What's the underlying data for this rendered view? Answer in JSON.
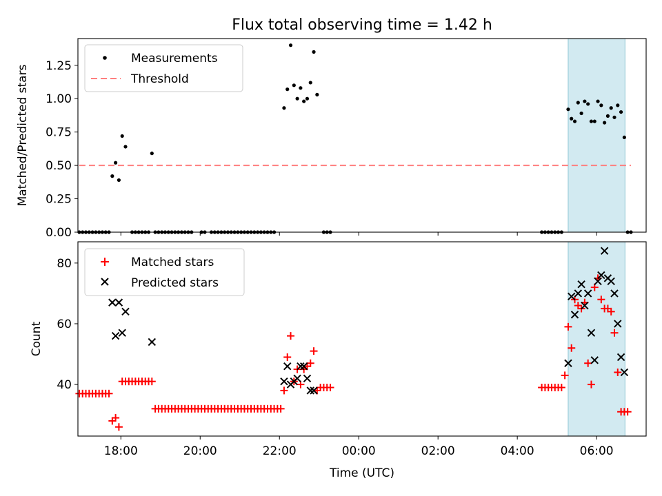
{
  "figure": {
    "title": "Flux total observing time = 1.42 h",
    "x_label": "Time (UTC)",
    "x_ticks": [
      "18:00",
      "20:00",
      "22:00",
      "00:00",
      "02:00",
      "04:00",
      "06:00"
    ],
    "highlight_color": "#add8e6"
  },
  "chart_data": [
    {
      "type": "scatter",
      "title": "Flux total observing time = 1.42 h",
      "xlabel": "",
      "ylabel": "Matched/Predicted stars",
      "ylim": [
        0,
        1.45
      ],
      "yticks": [
        0,
        0.25,
        0.5,
        0.75,
        1.0,
        1.25
      ],
      "ytick_labels": [
        "0.00",
        "0.25",
        "0.50",
        "0.75",
        "1.00",
        "1.25"
      ],
      "xlim": [
        "16:55",
        "07:15"
      ],
      "grid": false,
      "legend_placement": "top-left",
      "highlight": {
        "start": "05:17",
        "end": "06:43",
        "color": "#add8e6"
      },
      "series": [
        {
          "name": "Measurements",
          "style": "dot",
          "color": "#000000",
          "points": [
            [
              "16:57",
              0
            ],
            [
              "17:02",
              0
            ],
            [
              "17:07",
              0
            ],
            [
              "17:12",
              0
            ],
            [
              "17:17",
              0
            ],
            [
              "17:22",
              0
            ],
            [
              "17:27",
              0
            ],
            [
              "17:32",
              0
            ],
            [
              "17:37",
              0
            ],
            [
              "17:42",
              0
            ],
            [
              "17:47",
              0.42
            ],
            [
              "17:52",
              0.52
            ],
            [
              "17:57",
              0.39
            ],
            [
              "18:02",
              0.72
            ],
            [
              "18:07",
              0.64
            ],
            [
              "18:17",
              0
            ],
            [
              "18:22",
              0
            ],
            [
              "18:27",
              0
            ],
            [
              "18:32",
              0
            ],
            [
              "18:37",
              0
            ],
            [
              "18:42",
              0
            ],
            [
              "18:47",
              0.59
            ],
            [
              "18:52",
              0
            ],
            [
              "18:57",
              0
            ],
            [
              "19:02",
              0
            ],
            [
              "19:07",
              0
            ],
            [
              "19:12",
              0
            ],
            [
              "19:17",
              0
            ],
            [
              "19:22",
              0
            ],
            [
              "19:27",
              0
            ],
            [
              "19:32",
              0
            ],
            [
              "19:37",
              0
            ],
            [
              "19:42",
              0
            ],
            [
              "19:47",
              0
            ],
            [
              "20:02",
              0
            ],
            [
              "20:07",
              0
            ],
            [
              "20:17",
              0
            ],
            [
              "20:22",
              0
            ],
            [
              "20:27",
              0
            ],
            [
              "20:32",
              0
            ],
            [
              "20:37",
              0
            ],
            [
              "20:42",
              0
            ],
            [
              "20:47",
              0
            ],
            [
              "20:52",
              0
            ],
            [
              "20:57",
              0
            ],
            [
              "21:02",
              0
            ],
            [
              "21:07",
              0
            ],
            [
              "21:12",
              0
            ],
            [
              "21:17",
              0
            ],
            [
              "21:22",
              0
            ],
            [
              "21:27",
              0
            ],
            [
              "21:32",
              0
            ],
            [
              "21:37",
              0
            ],
            [
              "21:42",
              0
            ],
            [
              "21:47",
              0
            ],
            [
              "21:52",
              0
            ],
            [
              "22:07",
              0.93
            ],
            [
              "22:12",
              1.07
            ],
            [
              "22:17",
              1.4
            ],
            [
              "22:22",
              1.1
            ],
            [
              "22:27",
              1.0
            ],
            [
              "22:32",
              1.08
            ],
            [
              "22:37",
              0.98
            ],
            [
              "22:42",
              1.0
            ],
            [
              "22:47",
              1.12
            ],
            [
              "22:52",
              1.35
            ],
            [
              "22:57",
              1.03
            ],
            [
              "23:07",
              0
            ],
            [
              "23:12",
              0
            ],
            [
              "23:17",
              0
            ],
            [
              "04:37",
              0
            ],
            [
              "04:42",
              0
            ],
            [
              "04:47",
              0
            ],
            [
              "04:52",
              0
            ],
            [
              "04:57",
              0
            ],
            [
              "05:02",
              0
            ],
            [
              "05:07",
              0
            ],
            [
              "05:17",
              0.92
            ],
            [
              "05:22",
              0.85
            ],
            [
              "05:27",
              0.83
            ],
            [
              "05:32",
              0.97
            ],
            [
              "05:37",
              0.89
            ],
            [
              "05:42",
              0.98
            ],
            [
              "05:47",
              0.96
            ],
            [
              "05:52",
              0.83
            ],
            [
              "05:57",
              0.83
            ],
            [
              "06:02",
              0.98
            ],
            [
              "06:07",
              0.95
            ],
            [
              "06:12",
              0.82
            ],
            [
              "06:17",
              0.87
            ],
            [
              "06:22",
              0.93
            ],
            [
              "06:27",
              0.86
            ],
            [
              "06:32",
              0.95
            ],
            [
              "06:37",
              0.9
            ],
            [
              "06:42",
              0.71
            ],
            [
              "06:47",
              0
            ],
            [
              "06:52",
              0
            ]
          ]
        },
        {
          "name": "Threshold",
          "style": "dashed-line",
          "color": "#ff7f7f",
          "points": [
            [
              "16:57",
              0.5
            ],
            [
              "06:52",
              0.5
            ]
          ]
        }
      ]
    },
    {
      "type": "scatter",
      "title": "",
      "xlabel": "Time (UTC)",
      "ylabel": "Count",
      "ylim": [
        23,
        87
      ],
      "yticks": [
        40,
        60,
        80
      ],
      "ytick_labels": [
        "40",
        "60",
        "80"
      ],
      "xlim": [
        "16:55",
        "07:15"
      ],
      "grid": false,
      "legend_placement": "top-left",
      "highlight": {
        "start": "05:17",
        "end": "06:43",
        "color": "#add8e6"
      },
      "series": [
        {
          "name": "Matched stars",
          "style": "plus",
          "color": "#ff0000",
          "points": [
            [
              "16:57",
              37
            ],
            [
              "17:02",
              37
            ],
            [
              "17:07",
              37
            ],
            [
              "17:12",
              37
            ],
            [
              "17:17",
              37
            ],
            [
              "17:22",
              37
            ],
            [
              "17:27",
              37
            ],
            [
              "17:32",
              37
            ],
            [
              "17:37",
              37
            ],
            [
              "17:42",
              37
            ],
            [
              "17:47",
              28
            ],
            [
              "17:52",
              29
            ],
            [
              "17:57",
              26
            ],
            [
              "18:02",
              41
            ],
            [
              "18:07",
              41
            ],
            [
              "18:12",
              41
            ],
            [
              "18:17",
              41
            ],
            [
              "18:22",
              41
            ],
            [
              "18:27",
              41
            ],
            [
              "18:32",
              41
            ],
            [
              "18:37",
              41
            ],
            [
              "18:42",
              41
            ],
            [
              "18:47",
              41
            ],
            [
              "18:52",
              32
            ],
            [
              "18:57",
              32
            ],
            [
              "19:02",
              32
            ],
            [
              "19:07",
              32
            ],
            [
              "19:12",
              32
            ],
            [
              "19:17",
              32
            ],
            [
              "19:22",
              32
            ],
            [
              "19:27",
              32
            ],
            [
              "19:32",
              32
            ],
            [
              "19:37",
              32
            ],
            [
              "19:42",
              32
            ],
            [
              "19:47",
              32
            ],
            [
              "19:52",
              32
            ],
            [
              "19:57",
              32
            ],
            [
              "20:02",
              32
            ],
            [
              "20:07",
              32
            ],
            [
              "20:12",
              32
            ],
            [
              "20:17",
              32
            ],
            [
              "20:22",
              32
            ],
            [
              "20:27",
              32
            ],
            [
              "20:32",
              32
            ],
            [
              "20:37",
              32
            ],
            [
              "20:42",
              32
            ],
            [
              "20:47",
              32
            ],
            [
              "20:52",
              32
            ],
            [
              "20:57",
              32
            ],
            [
              "21:02",
              32
            ],
            [
              "21:07",
              32
            ],
            [
              "21:12",
              32
            ],
            [
              "21:17",
              32
            ],
            [
              "21:22",
              32
            ],
            [
              "21:27",
              32
            ],
            [
              "21:32",
              32
            ],
            [
              "21:37",
              32
            ],
            [
              "21:42",
              32
            ],
            [
              "21:47",
              32
            ],
            [
              "21:52",
              32
            ],
            [
              "21:57",
              32
            ],
            [
              "22:02",
              32
            ],
            [
              "22:07",
              38
            ],
            [
              "22:12",
              49
            ],
            [
              "22:17",
              56
            ],
            [
              "22:22",
              41
            ],
            [
              "22:27",
              45
            ],
            [
              "22:32",
              40
            ],
            [
              "22:37",
              45
            ],
            [
              "22:42",
              46
            ],
            [
              "22:47",
              47
            ],
            [
              "22:52",
              51
            ],
            [
              "22:57",
              38
            ],
            [
              "23:02",
              39
            ],
            [
              "23:07",
              39
            ],
            [
              "23:12",
              39
            ],
            [
              "23:17",
              39
            ],
            [
              "04:37",
              39
            ],
            [
              "04:42",
              39
            ],
            [
              "04:47",
              39
            ],
            [
              "04:52",
              39
            ],
            [
              "04:57",
              39
            ],
            [
              "05:02",
              39
            ],
            [
              "05:07",
              39
            ],
            [
              "05:12",
              43
            ],
            [
              "05:17",
              59
            ],
            [
              "05:22",
              52
            ],
            [
              "05:27",
              68
            ],
            [
              "05:32",
              66
            ],
            [
              "05:37",
              65
            ],
            [
              "05:42",
              67
            ],
            [
              "05:47",
              47
            ],
            [
              "05:52",
              40
            ],
            [
              "05:57",
              72
            ],
            [
              "06:02",
              75
            ],
            [
              "06:07",
              68
            ],
            [
              "06:12",
              65
            ],
            [
              "06:17",
              65
            ],
            [
              "06:22",
              64
            ],
            [
              "06:27",
              57
            ],
            [
              "06:32",
              44
            ],
            [
              "06:37",
              31
            ],
            [
              "06:42",
              31
            ],
            [
              "06:47",
              31
            ]
          ]
        },
        {
          "name": "Predicted stars",
          "style": "x",
          "color": "#000000",
          "points": [
            [
              "17:47",
              67
            ],
            [
              "17:52",
              56
            ],
            [
              "17:57",
              67
            ],
            [
              "18:02",
              57
            ],
            [
              "18:07",
              64
            ],
            [
              "18:47",
              54
            ],
            [
              "22:07",
              41
            ],
            [
              "22:12",
              46
            ],
            [
              "22:17",
              40
            ],
            [
              "22:22",
              41
            ],
            [
              "22:27",
              42
            ],
            [
              "22:32",
              46
            ],
            [
              "22:37",
              46
            ],
            [
              "22:42",
              42
            ],
            [
              "22:47",
              38
            ],
            [
              "22:52",
              38
            ],
            [
              "05:17",
              47
            ],
            [
              "05:22",
              69
            ],
            [
              "05:27",
              63
            ],
            [
              "05:32",
              70
            ],
            [
              "05:37",
              73
            ],
            [
              "05:42",
              66
            ],
            [
              "05:47",
              70
            ],
            [
              "05:52",
              57
            ],
            [
              "05:57",
              48
            ],
            [
              "06:02",
              74
            ],
            [
              "06:07",
              76
            ],
            [
              "06:12",
              84
            ],
            [
              "06:17",
              75
            ],
            [
              "06:22",
              74
            ],
            [
              "06:27",
              70
            ],
            [
              "06:32",
              60
            ],
            [
              "06:37",
              49
            ],
            [
              "06:42",
              44
            ]
          ]
        }
      ]
    }
  ]
}
